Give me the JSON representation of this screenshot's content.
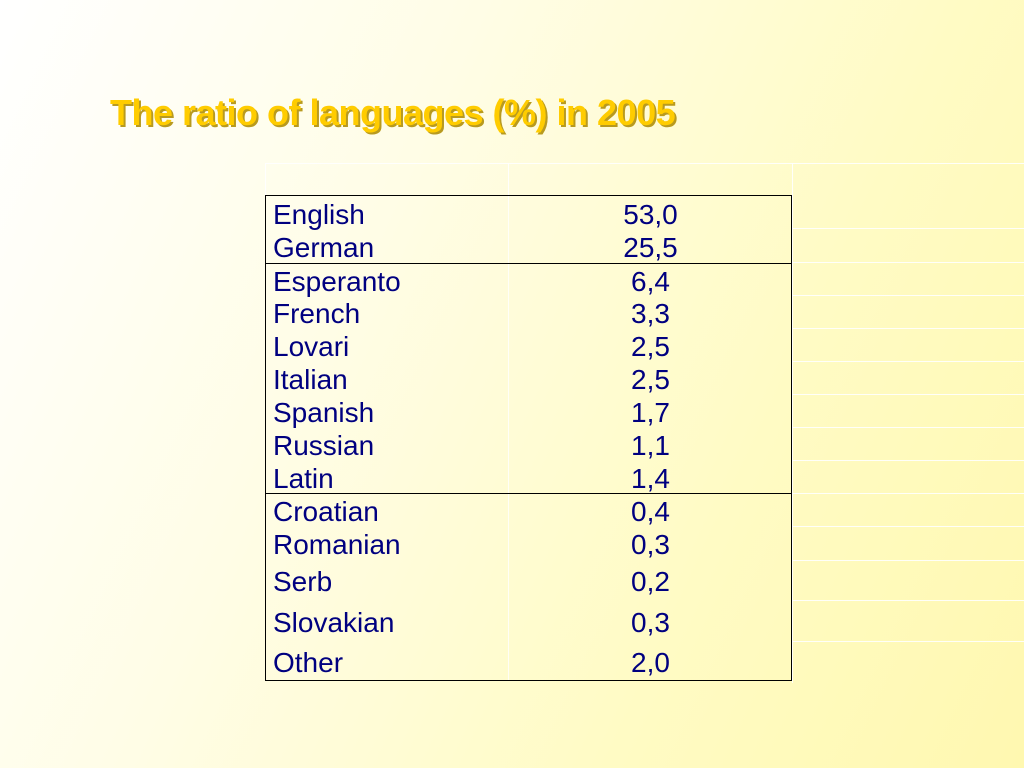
{
  "title": "The ratio of languages (%) in 2005",
  "colors": {
    "title": "#ffcc00",
    "text": "#000080",
    "border": "#000000"
  },
  "rows": [
    {
      "language": "English",
      "value": "53,0"
    },
    {
      "language": "German",
      "value": "25,5"
    },
    {
      "language": "Esperanto",
      "value": "6,4"
    },
    {
      "language": "French",
      "value": "3,3"
    },
    {
      "language": "Lovari",
      "value": "2,5"
    },
    {
      "language": "Italian",
      "value": "2,5"
    },
    {
      "language": "Spanish",
      "value": "1,7"
    },
    {
      "language": "Russian",
      "value": "1,1"
    },
    {
      "language": "Latin",
      "value": "1,4"
    },
    {
      "language": "Croatian",
      "value": "0,4"
    },
    {
      "language": "Romanian",
      "value": "0,3"
    },
    {
      "language": "Serb",
      "value": "0,2"
    },
    {
      "language": "Slovakian",
      "value": "0,3"
    },
    {
      "language": "Other",
      "value": "2,0"
    }
  ]
}
